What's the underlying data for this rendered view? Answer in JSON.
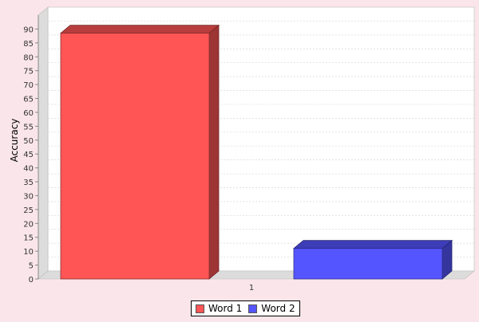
{
  "chart_data": {
    "type": "bar",
    "title": "",
    "xlabel": "",
    "ylabel": "Accuracy",
    "categories": [
      "1"
    ],
    "ylim": [
      0,
      95
    ],
    "yticks": [
      0,
      5,
      10,
      15,
      20,
      25,
      30,
      35,
      40,
      45,
      50,
      55,
      60,
      65,
      70,
      75,
      80,
      85,
      90
    ],
    "grid": true,
    "legend_position": "bottom",
    "series": [
      {
        "name": "Word 1",
        "values": [
          88.5
        ],
        "color": "#ff5555"
      },
      {
        "name": "Word 2",
        "values": [
          11
        ],
        "color": "#5555ff"
      }
    ]
  }
}
